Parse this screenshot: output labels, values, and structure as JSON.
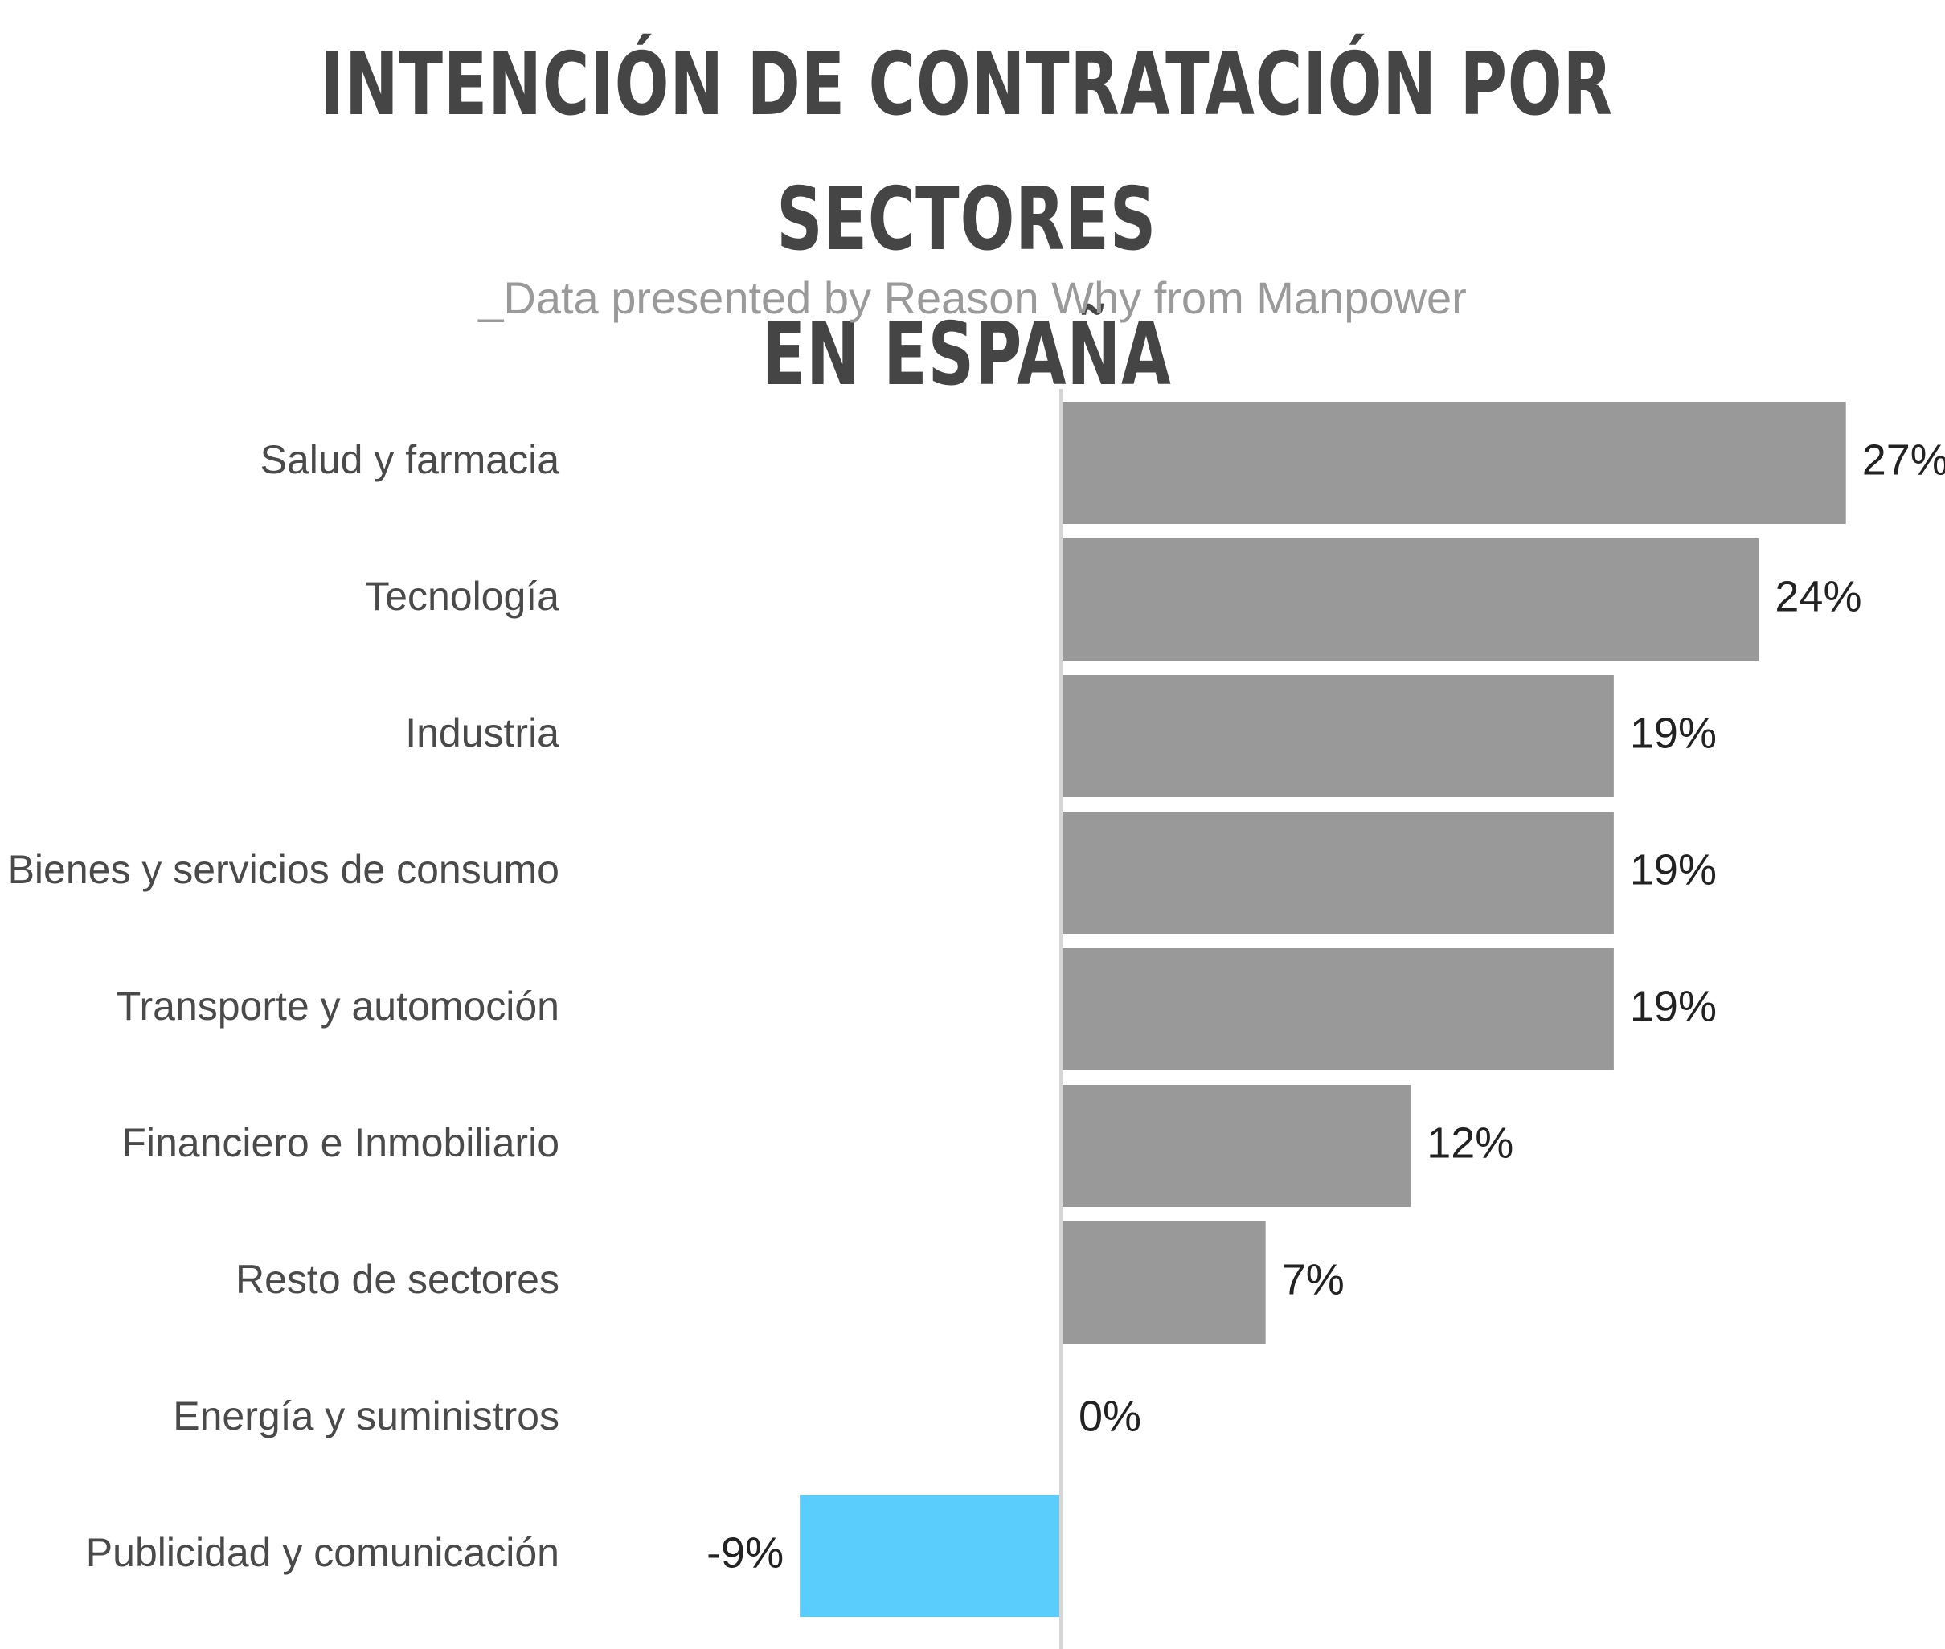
{
  "title_lines": [
    "INTENCIÓN DE CONTRATACIÓN POR SECTORES",
    "EN ESPAÑA"
  ],
  "subtitle": "_Data presented by Reason Why from Manpower",
  "colors": {
    "positive": "#999999",
    "negative": "#5bcdfc",
    "axis": "#d6d6d6"
  },
  "chart_data": {
    "type": "bar",
    "orientation": "horizontal",
    "categories": [
      "Salud y farmacia",
      "Tecnología",
      "Industria",
      "Bienes y servicios de consumo",
      "Transporte y automoción",
      "Financiero e Inmobiliario",
      "Resto de sectores",
      "Energía y suministros",
      "Publicidad y comunicación"
    ],
    "values": [
      27,
      24,
      19,
      19,
      19,
      12,
      7,
      0,
      -9
    ],
    "value_labels": [
      "27%",
      "24%",
      "19%",
      "19%",
      "19%",
      "12%",
      "7%",
      "0%",
      "-9%"
    ],
    "unit": "%",
    "grid": false,
    "legend": "none"
  }
}
